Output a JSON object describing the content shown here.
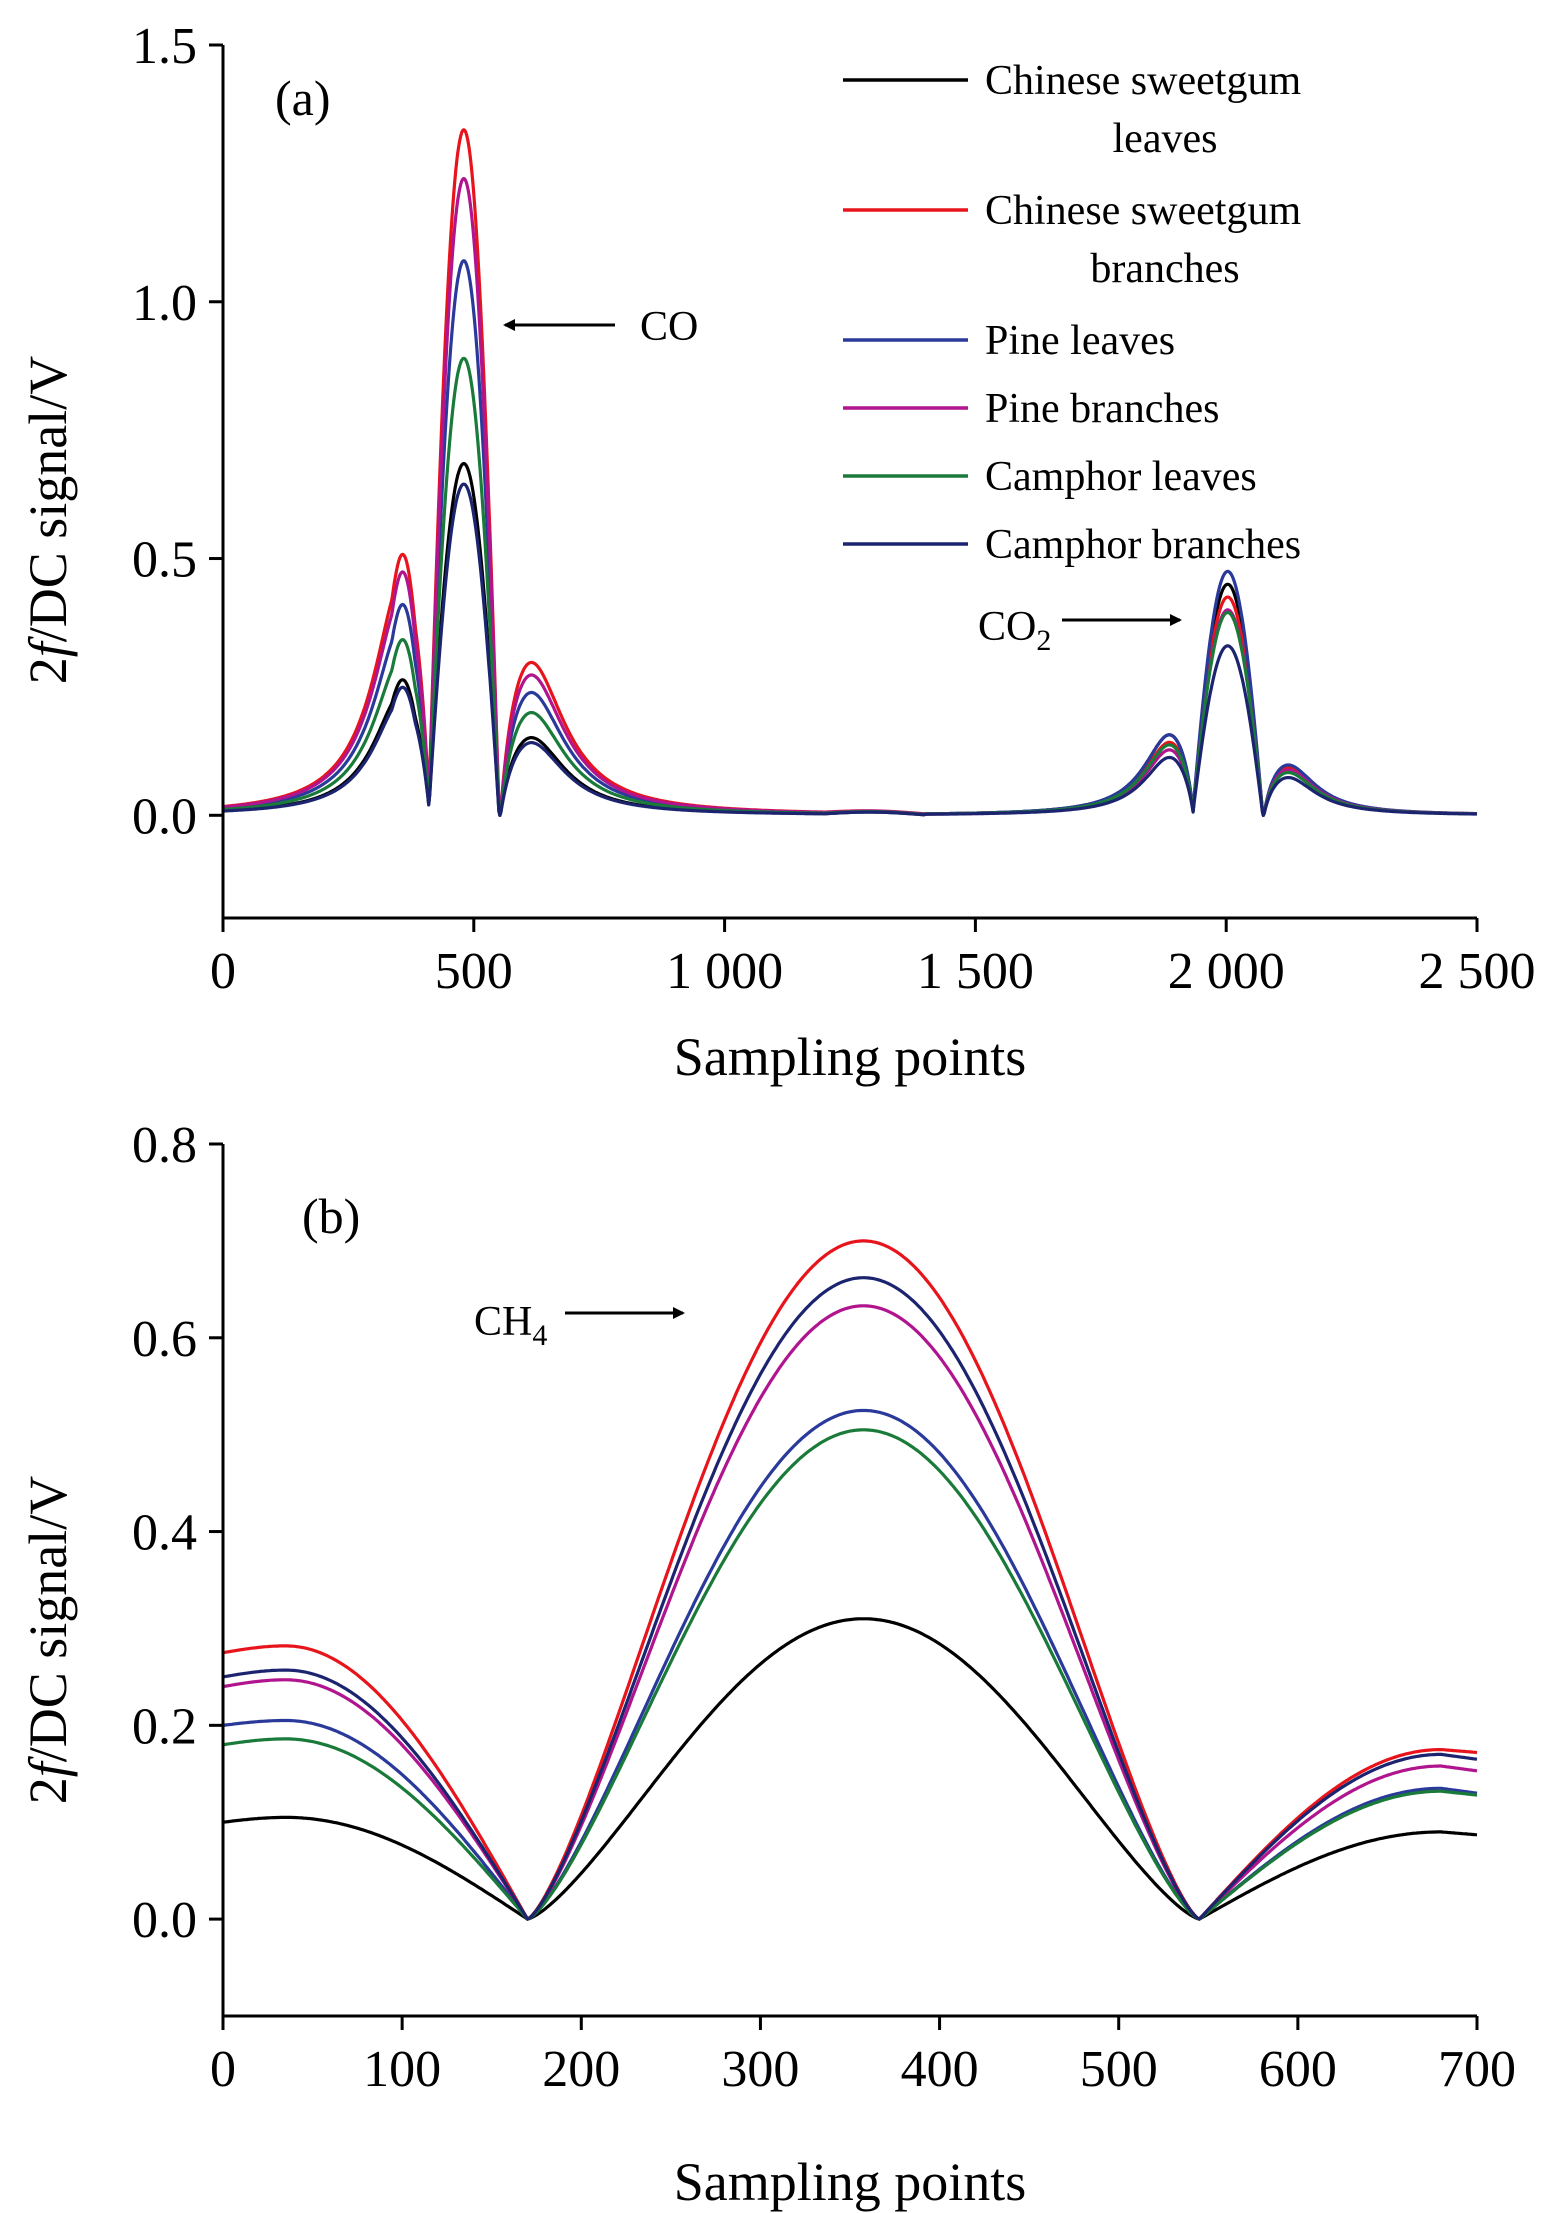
{
  "chart_data": [
    {
      "type": "line",
      "panel_label": "(a)",
      "xlabel": "Sampling points",
      "ylabel": "2f/DC signal/V",
      "ylabel_italic_part": "f",
      "xlim": [
        0,
        2500
      ],
      "ylim": [
        -0.2,
        1.5
      ],
      "x_ticks": [
        0,
        500,
        1000,
        1500,
        2000,
        2500
      ],
      "x_tick_labels": [
        "0",
        "500",
        "1 000",
        "1 500",
        "2 000",
        "2 500"
      ],
      "y_ticks": [
        0.0,
        0.5,
        1.0,
        1.5
      ],
      "y_tick_labels": [
        "0.0",
        "0.5",
        "1.0",
        "1.5"
      ],
      "grid": false,
      "legend_position": "top-right",
      "annotations": [
        {
          "text": "CO",
          "target_x": 560,
          "target_y": 0.96
        },
        {
          "text": "CO",
          "subscript": "2",
          "target_x": 1910,
          "target_y": 0.38
        }
      ],
      "series": [
        {
          "name": "Chinese sweetgum leaves",
          "legend_lines": [
            "Chinese sweetgum",
            "leaves"
          ],
          "color": "#000000",
          "peaks": [
            0.27,
            0.685,
            0.155,
            0.16,
            0.45,
            0.09
          ]
        },
        {
          "name": "Chinese sweetgum branches",
          "legend_lines": [
            "Chinese sweetgum",
            "branches"
          ],
          "color": "#e8141c",
          "peaks": [
            0.52,
            1.335,
            0.305,
            0.145,
            0.425,
            0.095
          ]
        },
        {
          "name": "Pine leaves",
          "legend_lines": [
            "Pine leaves"
          ],
          "color": "#2a3a9a",
          "peaks": [
            0.42,
            1.08,
            0.245,
            0.16,
            0.475,
            0.1
          ]
        },
        {
          "name": "Pine branches",
          "legend_lines": [
            "Pine branches"
          ],
          "color": "#b0148e",
          "peaks": [
            0.485,
            1.24,
            0.28,
            0.13,
            0.4,
            0.09
          ]
        },
        {
          "name": "Camphor leaves",
          "legend_lines": [
            "Camphor leaves"
          ],
          "color": "#1a7a3a",
          "peaks": [
            0.35,
            0.89,
            0.205,
            0.14,
            0.395,
            0.085
          ]
        },
        {
          "name": "Camphor branches",
          "legend_lines": [
            "Camphor branches"
          ],
          "color": "#1c2470",
          "peaks": [
            0.255,
            0.645,
            0.145,
            0.115,
            0.33,
            0.075
          ]
        }
      ],
      "peak_positions": [
        360,
        480,
        610,
        1890,
        2003,
        2120
      ],
      "zero_points": [
        412,
        553,
        1935,
        2075
      ]
    },
    {
      "type": "line",
      "panel_label": "(b)",
      "xlabel": "Sampling points",
      "ylabel": "2f/DC signal/V",
      "ylabel_italic_part": "f",
      "xlim": [
        0,
        700
      ],
      "ylim": [
        -0.1,
        0.8
      ],
      "x_ticks": [
        0,
        100,
        200,
        300,
        400,
        500,
        600,
        700
      ],
      "x_tick_labels": [
        "0",
        "100",
        "200",
        "300",
        "400",
        "500",
        "600",
        "700"
      ],
      "y_ticks": [
        0.0,
        0.2,
        0.4,
        0.6,
        0.8
      ],
      "y_tick_labels": [
        "0.0",
        "0.2",
        "0.4",
        "0.6",
        "0.8"
      ],
      "grid": false,
      "annotations": [
        {
          "text": "CH",
          "subscript": "4",
          "target_x": 258,
          "target_y": 0.62
        }
      ],
      "zero_points": [
        170,
        545
      ],
      "series": [
        {
          "name": "Chinese sweetgum leaves",
          "color": "#000000",
          "start": 0.1,
          "left_peak": 0.105,
          "center_peak": 0.31,
          "right_peak": 0.09,
          "end": 0.087
        },
        {
          "name": "Chinese sweetgum branches",
          "color": "#e8141c",
          "start": 0.275,
          "left_peak": 0.282,
          "center_peak": 0.7,
          "right_peak": 0.175,
          "end": 0.172
        },
        {
          "name": "Pine leaves",
          "color": "#2a3a9a",
          "start": 0.2,
          "left_peak": 0.205,
          "center_peak": 0.525,
          "right_peak": 0.135,
          "end": 0.13
        },
        {
          "name": "Pine branches",
          "color": "#b0148e",
          "start": 0.24,
          "left_peak": 0.247,
          "center_peak": 0.633,
          "right_peak": 0.158,
          "end": 0.153
        },
        {
          "name": "Camphor leaves",
          "color": "#1a7a3a",
          "start": 0.18,
          "left_peak": 0.186,
          "center_peak": 0.505,
          "right_peak": 0.132,
          "end": 0.128
        },
        {
          "name": "Camphor branches",
          "color": "#1c2470",
          "start": 0.25,
          "left_peak": 0.257,
          "center_peak": 0.662,
          "right_peak": 0.17,
          "end": 0.165
        }
      ]
    }
  ]
}
